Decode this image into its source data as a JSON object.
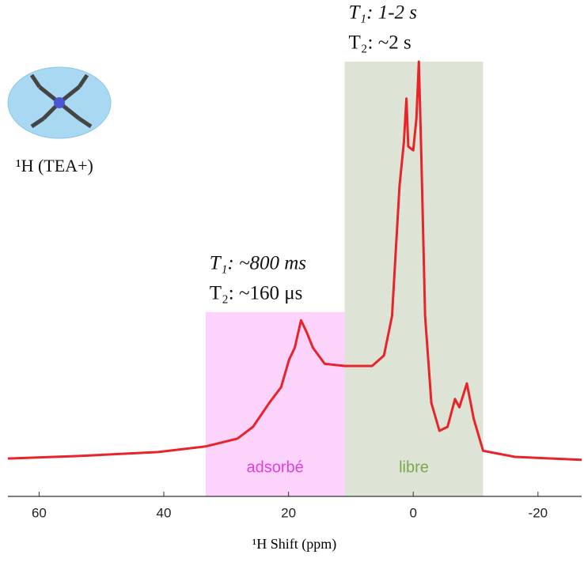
{
  "chart_data": {
    "type": "line",
    "x_label": "¹H Shift (ppm)",
    "nucleus_label": "¹H (TEA+)",
    "xlim": [
      65,
      -27
    ],
    "xticks": [
      60,
      40,
      20,
      0,
      -20
    ],
    "ylim": [
      0,
      100
    ],
    "regions": [
      {
        "label": "adsorbé",
        "x": [
          33.3,
          11.0
        ],
        "top": 42.4,
        "color": "#fbd3fb",
        "label_color": "#e040e0",
        "notes": [
          "T₁: ~800 ms",
          "T₂: ~160 μs"
        ]
      },
      {
        "label": "libre",
        "x": [
          11.0,
          -11.2
        ],
        "top": 100,
        "color": "#dde4d6",
        "label_color": "#7aa84a",
        "notes": [
          "T₁: 1-2 s",
          "T₂: ~2 s"
        ]
      }
    ],
    "series": [
      {
        "color": "#e8232a",
        "x": [
          65.0,
          53.6,
          40.9,
          33.3,
          28.2,
          25.7,
          23.1,
          21.2,
          19.9,
          19.0,
          18.0,
          17.1,
          16.1,
          14.2,
          11.0,
          6.6,
          4.7,
          3.4,
          2.2,
          1.5,
          1.1,
          0.8,
          0,
          -0.5,
          -0.9,
          -1.3,
          -1.9,
          -2.9,
          -4.2,
          -5.5,
          -6.7,
          -7.4,
          -8.6,
          -9.7,
          -11.2,
          -16.3,
          -27.0
        ],
        "values": [
          8.7,
          9.3,
          10.2,
          11.5,
          13.3,
          16,
          21.5,
          25.1,
          31.5,
          34.2,
          40.5,
          37.8,
          34.2,
          30.5,
          30,
          30,
          32.4,
          41.5,
          71.5,
          81.5,
          91.5,
          80.5,
          79.6,
          86.9,
          100,
          77.8,
          41.5,
          21.5,
          15.1,
          16,
          22.4,
          20.5,
          26,
          17.8,
          10.5,
          9.1,
          8.4
        ]
      }
    ]
  }
}
